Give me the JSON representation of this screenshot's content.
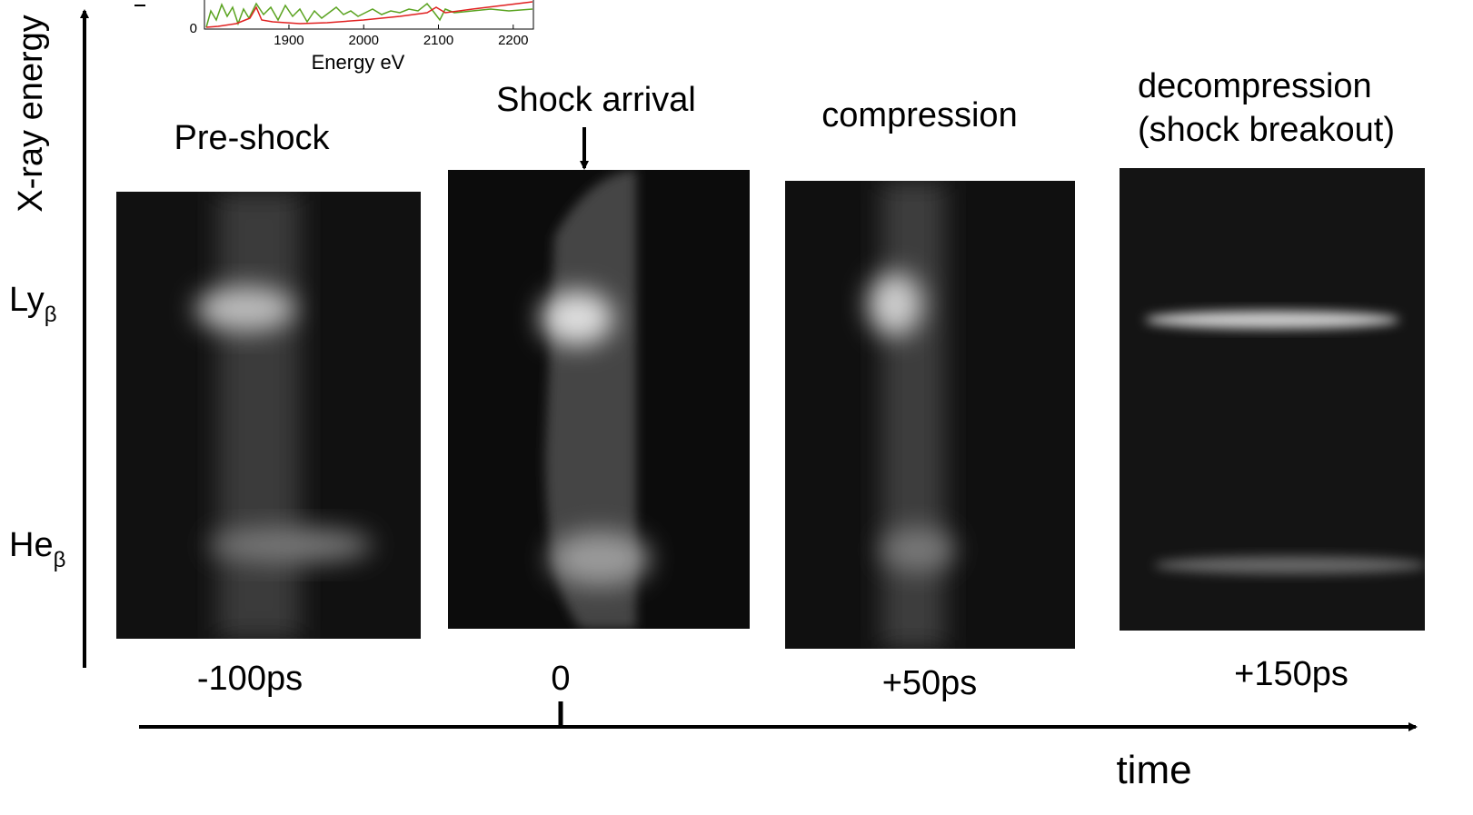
{
  "inset": {
    "xticks": [
      1900,
      2000,
      2100,
      2200
    ],
    "xlim": [
      1787,
      2227
    ],
    "yticks": [
      0
    ],
    "xlabel": "Energy eV"
  },
  "y_axis": {
    "label": "X-ray energy",
    "lines": [
      {
        "main": "Ly",
        "sub": "β"
      },
      {
        "main": "He",
        "sub": "β"
      }
    ]
  },
  "panels": [
    {
      "title": [
        "Pre-shock"
      ],
      "time": "-100ps"
    },
    {
      "title": [
        "Shock arrival"
      ],
      "time": "0"
    },
    {
      "title": [
        "compression"
      ],
      "time": "+50ps"
    },
    {
      "title": [
        "decompression",
        "(shock breakout)"
      ],
      "time": "+150ps"
    }
  ],
  "x_axis": {
    "label": "time"
  }
}
